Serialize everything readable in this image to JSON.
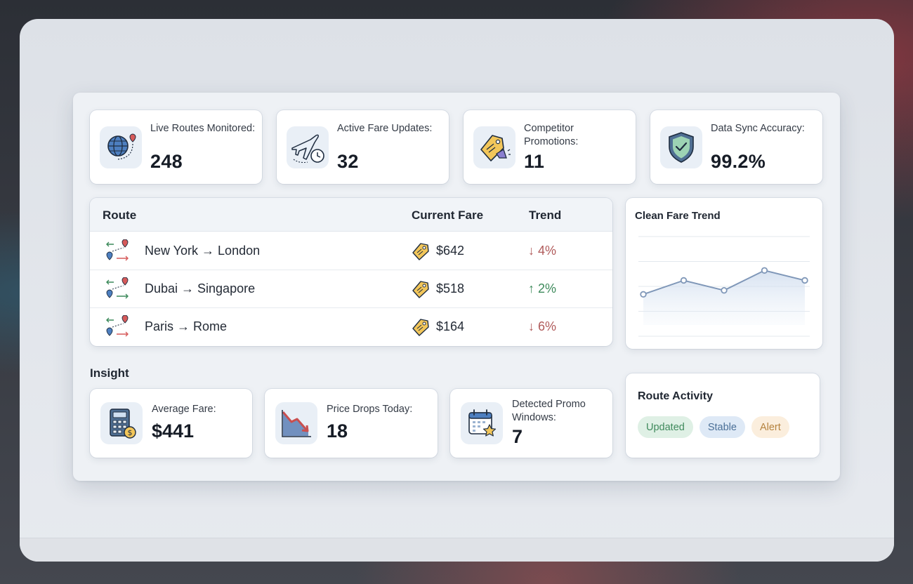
{
  "kpis": [
    {
      "label": "Live Routes Monitored:",
      "value": "248",
      "icon": "globe-route-icon"
    },
    {
      "label": "Active Fare Updates:",
      "value": "32",
      "icon": "airplane-clock-icon"
    },
    {
      "label": "Competitor Promotions:",
      "value": "11",
      "icon": "promo-tag-megaphone-icon"
    },
    {
      "label": "Data Sync Accuracy:",
      "value": "99.2%",
      "icon": "shield-check-icon"
    }
  ],
  "table": {
    "headers": {
      "route": "Route",
      "fare": "Current Fare",
      "trend": "Trend"
    },
    "rows": [
      {
        "route": "New York → London",
        "fare": "$642",
        "trend": "↓ 4%",
        "direction": "down"
      },
      {
        "route": "Dubai → Singapore",
        "fare": "$518",
        "trend": "↑ 2%",
        "direction": "up"
      },
      {
        "route": "Paris → Rome",
        "fare": "$164",
        "trend": "↓ 6%",
        "direction": "down"
      }
    ]
  },
  "chart_data": {
    "type": "area",
    "title": "Clean Fare Trend",
    "x": [
      1,
      2,
      3,
      4,
      5
    ],
    "values": [
      2.1,
      2.8,
      2.3,
      3.3,
      2.8
    ],
    "ylim": [
      0,
      5
    ],
    "grid": true,
    "xlabel": "",
    "ylabel": ""
  },
  "insight": {
    "title": "Insight",
    "cards": [
      {
        "label": "Average Fare:",
        "value": "$441",
        "icon": "calculator-coin-icon"
      },
      {
        "label": "Price Drops Today:",
        "value": "18",
        "icon": "declining-chart-icon"
      },
      {
        "label": "Detected Promo Windows:",
        "value": "7",
        "icon": "calendar-star-icon"
      }
    ]
  },
  "activity": {
    "title": "Route Activity",
    "chips": [
      "Updated",
      "Stable",
      "Alert"
    ]
  },
  "colors": {
    "up": "#3d8a5b",
    "down": "#b05a5a",
    "chart_line": "#7f97b8"
  }
}
